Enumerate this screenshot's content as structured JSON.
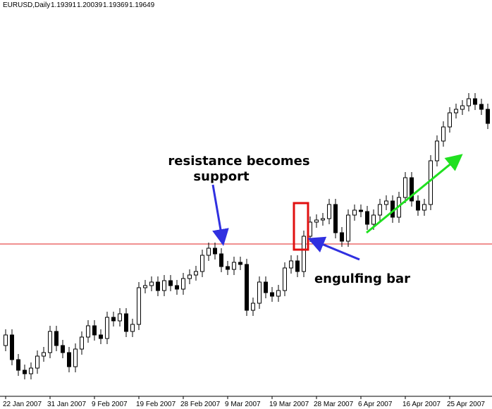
{
  "chart_data": {
    "type": "candlestick",
    "title": "EURUSD,Daily",
    "info_values": [
      1.19391,
      1.20039,
      1.19369,
      1.19649
    ],
    "annotations": {
      "resistance": [
        "resistance becomes",
        "support"
      ],
      "engulfing": "engulfing bar"
    },
    "categories": [
      "22 Jan 2007",
      null,
      null,
      null,
      null,
      null,
      null,
      "31 Jan 2007",
      null,
      null,
      null,
      null,
      null,
      null,
      "9 Feb 2007",
      null,
      null,
      null,
      null,
      null,
      null,
      "19 Feb 2007",
      null,
      null,
      null,
      null,
      null,
      null,
      "28 Feb 2007",
      null,
      null,
      null,
      null,
      null,
      null,
      "9 Mar 2007",
      null,
      null,
      null,
      null,
      null,
      null,
      "19 Mar 2007",
      null,
      null,
      null,
      null,
      null,
      null,
      "28 Mar 2007",
      null,
      null,
      null,
      null,
      null,
      null,
      "6 Apr 2007",
      null,
      null,
      null,
      null,
      null,
      null,
      "16 Apr 2007",
      null,
      null,
      null,
      null,
      null,
      null,
      "25 Apr 2007",
      null,
      null,
      null,
      null,
      null,
      null
    ],
    "open": [
      1.294,
      1.297,
      1.29,
      1.287,
      1.286,
      1.2876,
      1.291,
      1.292,
      1.298,
      1.294,
      1.292,
      1.288,
      1.293,
      1.2964,
      1.2996,
      1.297,
      1.296,
      1.302,
      1.301,
      1.303,
      1.298,
      1.3,
      1.3104,
      1.311,
      1.312,
      1.3096,
      1.3124,
      1.311,
      1.31,
      1.313,
      1.314,
      1.315,
      1.3196,
      1.3216,
      1.32,
      1.3164,
      1.3156,
      1.3176,
      1.317,
      1.304,
      1.306,
      1.312,
      1.309,
      1.308,
      1.3096,
      1.316,
      1.318,
      1.315,
      1.325,
      1.329,
      1.3296,
      1.33,
      1.334,
      1.326,
      1.3236,
      1.331,
      1.3324,
      1.332,
      1.3284,
      1.331,
      1.334,
      1.335,
      1.3304,
      1.336,
      1.3416,
      1.335,
      1.3324,
      1.334,
      1.3464,
      1.352,
      1.356,
      1.36,
      1.361,
      1.362,
      1.364,
      1.3624,
      1.361
    ],
    "high": [
      1.2986,
      1.2986,
      1.2916,
      1.2886,
      1.2892,
      1.2926,
      1.2936,
      1.2996,
      1.2996,
      1.2956,
      1.2936,
      1.2946,
      1.298,
      1.3012,
      1.3012,
      1.2986,
      1.3036,
      1.3036,
      1.3046,
      1.3046,
      1.3016,
      1.312,
      1.3126,
      1.3136,
      1.3136,
      1.314,
      1.314,
      1.3126,
      1.3146,
      1.3156,
      1.3166,
      1.3212,
      1.3232,
      1.3232,
      1.3216,
      1.318,
      1.3192,
      1.3192,
      1.3186,
      1.3076,
      1.3136,
      1.3136,
      1.3106,
      1.3112,
      1.3176,
      1.3196,
      1.3196,
      1.3266,
      1.3306,
      1.3312,
      1.3316,
      1.3356,
      1.3356,
      1.3276,
      1.3326,
      1.334,
      1.334,
      1.3336,
      1.3326,
      1.3356,
      1.3366,
      1.3366,
      1.3376,
      1.3432,
      1.3432,
      1.3366,
      1.3356,
      1.348,
      1.3536,
      1.3576,
      1.3616,
      1.3626,
      1.3636,
      1.3656,
      1.3656,
      1.364,
      1.3626
    ],
    "low": [
      1.2924,
      1.2884,
      1.2854,
      1.2844,
      1.2844,
      1.286,
      1.2894,
      1.2904,
      1.2924,
      1.2904,
      1.2864,
      1.2864,
      1.2914,
      1.2948,
      1.2954,
      1.2944,
      1.2944,
      1.2994,
      1.2994,
      1.2964,
      1.2964,
      1.2984,
      1.3088,
      1.3094,
      1.308,
      1.308,
      1.3094,
      1.3084,
      1.3084,
      1.3114,
      1.3124,
      1.3134,
      1.318,
      1.3184,
      1.3148,
      1.314,
      1.314,
      1.3154,
      1.3024,
      1.3024,
      1.3044,
      1.3074,
      1.3064,
      1.3064,
      1.308,
      1.3144,
      1.3134,
      1.3134,
      1.3234,
      1.3274,
      1.328,
      1.3284,
      1.3244,
      1.322,
      1.322,
      1.3294,
      1.3304,
      1.3268,
      1.3268,
      1.3294,
      1.3324,
      1.3288,
      1.3288,
      1.3344,
      1.3334,
      1.3308,
      1.3308,
      1.3324,
      1.3448,
      1.3504,
      1.3544,
      1.3584,
      1.3594,
      1.3604,
      1.3608,
      1.3594,
      1.3554
    ],
    "close": [
      1.297,
      1.29,
      1.287,
      1.286,
      1.2876,
      1.291,
      1.292,
      1.298,
      1.294,
      1.292,
      1.288,
      1.293,
      1.2964,
      1.2996,
      1.297,
      1.296,
      1.302,
      1.301,
      1.303,
      1.298,
      1.3,
      1.3104,
      1.311,
      1.312,
      1.3096,
      1.3124,
      1.311,
      1.31,
      1.313,
      1.314,
      1.315,
      1.3196,
      1.3216,
      1.32,
      1.3164,
      1.3156,
      1.3176,
      1.317,
      1.304,
      1.306,
      1.312,
      1.309,
      1.308,
      1.3096,
      1.316,
      1.318,
      1.315,
      1.325,
      1.329,
      1.3296,
      1.33,
      1.334,
      1.326,
      1.3236,
      1.331,
      1.3324,
      1.332,
      1.3284,
      1.331,
      1.334,
      1.335,
      1.3304,
      1.336,
      1.3416,
      1.335,
      1.3324,
      1.334,
      1.3464,
      1.352,
      1.356,
      1.36,
      1.361,
      1.362,
      1.364,
      1.3624,
      1.361,
      1.357
    ],
    "ylim": [
      1.28,
      1.39
    ],
    "hline": 1.3228,
    "hline_color": "#e02020",
    "bull_color": "#ffffff",
    "bear_color": "#000000"
  }
}
